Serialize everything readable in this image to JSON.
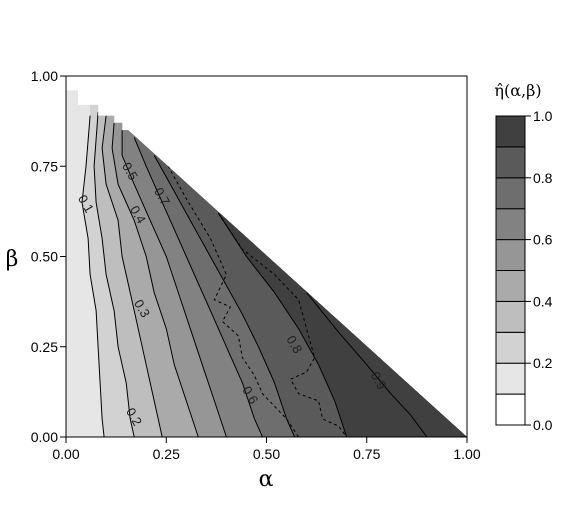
{
  "chart_data": {
    "type": "heatmap",
    "title": "",
    "xlabel": "α",
    "ylabel": "β",
    "xlim": [
      0,
      1
    ],
    "ylim": [
      0,
      1
    ],
    "x_ticks": [
      "0.00",
      "0.25",
      "0.50",
      "0.75",
      "1.00"
    ],
    "y_ticks": [
      "0.00",
      "0.25",
      "0.50",
      "0.75",
      "1.00"
    ],
    "domain": "triangle α + β ≤ 1",
    "grid": false,
    "colorbar": {
      "title": "η̂(α,β)",
      "ticks": [
        "0.0",
        "0.2",
        "0.4",
        "0.6",
        "0.8",
        "1.0"
      ],
      "levels": [
        0,
        0.1,
        0.2,
        0.3,
        0.4,
        0.5,
        0.6,
        0.7,
        0.8,
        0.9,
        1.0
      ],
      "colors": [
        "#ffffff",
        "#e6e6e6",
        "#d2d2d2",
        "#bebebe",
        "#aaaaaa",
        "#969696",
        "#828282",
        "#6e6e6e",
        "#5a5a5a",
        "#404040"
      ]
    },
    "contour_labels": [
      "0.1",
      "0.2",
      "0.3",
      "0.4",
      "0.5",
      "0.6",
      "0.7",
      "0.8",
      "0.9"
    ],
    "contours": [
      {
        "level": 0.1,
        "points": [
          [
            0.06,
            0.89
          ],
          [
            0.05,
            0.75
          ],
          [
            0.04,
            0.65
          ],
          [
            0.055,
            0.55
          ],
          [
            0.06,
            0.45
          ],
          [
            0.075,
            0.35
          ],
          [
            0.08,
            0.25
          ],
          [
            0.085,
            0.15
          ],
          [
            0.09,
            0.05
          ],
          [
            0.095,
            0.0
          ]
        ],
        "label": {
          "x": 0.04,
          "y": 0.64,
          "text": "0.1"
        }
      },
      {
        "level": 0.2,
        "points": [
          [
            0.08,
            0.9
          ],
          [
            0.07,
            0.75
          ],
          [
            0.075,
            0.65
          ],
          [
            0.09,
            0.55
          ],
          [
            0.1,
            0.45
          ],
          [
            0.12,
            0.35
          ],
          [
            0.13,
            0.25
          ],
          [
            0.15,
            0.15
          ],
          [
            0.16,
            0.05
          ],
          [
            0.17,
            0.0
          ]
        ],
        "label": {
          "x": 0.16,
          "y": 0.05,
          "text": "0.2"
        }
      },
      {
        "level": 0.3,
        "points": [
          [
            0.1,
            0.89
          ],
          [
            0.09,
            0.8
          ],
          [
            0.1,
            0.7
          ],
          [
            0.13,
            0.6
          ],
          [
            0.14,
            0.5
          ],
          [
            0.16,
            0.4
          ],
          [
            0.18,
            0.3
          ],
          [
            0.2,
            0.2
          ],
          [
            0.22,
            0.1
          ],
          [
            0.24,
            0.0
          ]
        ],
        "label": {
          "x": 0.18,
          "y": 0.35,
          "text": "0.3"
        }
      },
      {
        "level": 0.4,
        "points": [
          [
            0.12,
            0.87
          ],
          [
            0.115,
            0.8
          ],
          [
            0.13,
            0.7
          ],
          [
            0.17,
            0.6
          ],
          [
            0.2,
            0.5
          ],
          [
            0.22,
            0.4
          ],
          [
            0.25,
            0.3
          ],
          [
            0.27,
            0.2
          ],
          [
            0.3,
            0.1
          ],
          [
            0.33,
            0.0
          ]
        ],
        "label": {
          "x": 0.17,
          "y": 0.61,
          "text": "0.4"
        }
      },
      {
        "level": 0.5,
        "points": [
          [
            0.14,
            0.85
          ],
          [
            0.14,
            0.78
          ],
          [
            0.17,
            0.7
          ],
          [
            0.21,
            0.6
          ],
          [
            0.25,
            0.5
          ],
          [
            0.28,
            0.4
          ],
          [
            0.31,
            0.3
          ],
          [
            0.34,
            0.2
          ],
          [
            0.37,
            0.1
          ],
          [
            0.4,
            0.0
          ]
        ],
        "label": {
          "x": 0.15,
          "y": 0.73,
          "text": "0.5"
        }
      },
      {
        "level": 0.6,
        "points": [
          [
            0.17,
            0.83
          ],
          [
            0.2,
            0.75
          ],
          [
            0.24,
            0.65
          ],
          [
            0.28,
            0.55
          ],
          [
            0.32,
            0.45
          ],
          [
            0.36,
            0.35
          ],
          [
            0.4,
            0.25
          ],
          [
            0.44,
            0.15
          ],
          [
            0.47,
            0.05
          ],
          [
            0.49,
            0.0
          ]
        ],
        "label": {
          "x": 0.45,
          "y": 0.11,
          "text": "0.6"
        }
      },
      {
        "level": 0.7,
        "points": [
          [
            0.22,
            0.78
          ],
          [
            0.26,
            0.7
          ],
          [
            0.3,
            0.62
          ],
          [
            0.35,
            0.52
          ],
          [
            0.39,
            0.44
          ],
          [
            0.44,
            0.34
          ],
          [
            0.48,
            0.25
          ],
          [
            0.52,
            0.15
          ],
          [
            0.55,
            0.05
          ],
          [
            0.57,
            0.0
          ]
        ],
        "label": {
          "x": 0.23,
          "y": 0.66,
          "text": "0.7"
        }
      },
      {
        "level": 0.8,
        "points": [
          [
            0.38,
            0.62
          ],
          [
            0.45,
            0.5
          ],
          [
            0.52,
            0.4
          ],
          [
            0.58,
            0.3
          ],
          [
            0.63,
            0.2
          ],
          [
            0.67,
            0.1
          ],
          [
            0.7,
            0.0
          ]
        ],
        "label": {
          "x": 0.56,
          "y": 0.25,
          "text": "0.8"
        }
      },
      {
        "level": 0.9,
        "points": [
          [
            0.6,
            0.4
          ],
          [
            0.68,
            0.29
          ],
          [
            0.75,
            0.2
          ],
          [
            0.81,
            0.12
          ],
          [
            0.86,
            0.06
          ],
          [
            0.9,
            0.0
          ]
        ],
        "label": {
          "x": 0.77,
          "y": 0.15,
          "text": "0.9"
        }
      }
    ],
    "dashed_contour": {
      "level": 0.75,
      "points": [
        [
          0.24,
          0.78
        ],
        [
          0.3,
          0.66
        ],
        [
          0.36,
          0.55
        ],
        [
          0.4,
          0.45
        ],
        [
          0.37,
          0.38
        ],
        [
          0.41,
          0.36
        ],
        [
          0.39,
          0.32
        ],
        [
          0.43,
          0.28
        ],
        [
          0.44,
          0.22
        ],
        [
          0.47,
          0.17
        ],
        [
          0.49,
          0.12
        ],
        [
          0.55,
          0.05
        ],
        [
          0.58,
          0.0
        ]
      ]
    },
    "dashed_contour_2": {
      "level": 0.85,
      "points": [
        [
          0.38,
          0.62
        ],
        [
          0.44,
          0.52
        ],
        [
          0.52,
          0.45
        ],
        [
          0.58,
          0.38
        ],
        [
          0.6,
          0.3
        ],
        [
          0.62,
          0.22
        ],
        [
          0.6,
          0.18
        ],
        [
          0.56,
          0.16
        ],
        [
          0.58,
          0.12
        ],
        [
          0.63,
          0.1
        ],
        [
          0.64,
          0.05
        ],
        [
          0.68,
          0.03
        ],
        [
          0.7,
          0.0
        ]
      ]
    }
  }
}
